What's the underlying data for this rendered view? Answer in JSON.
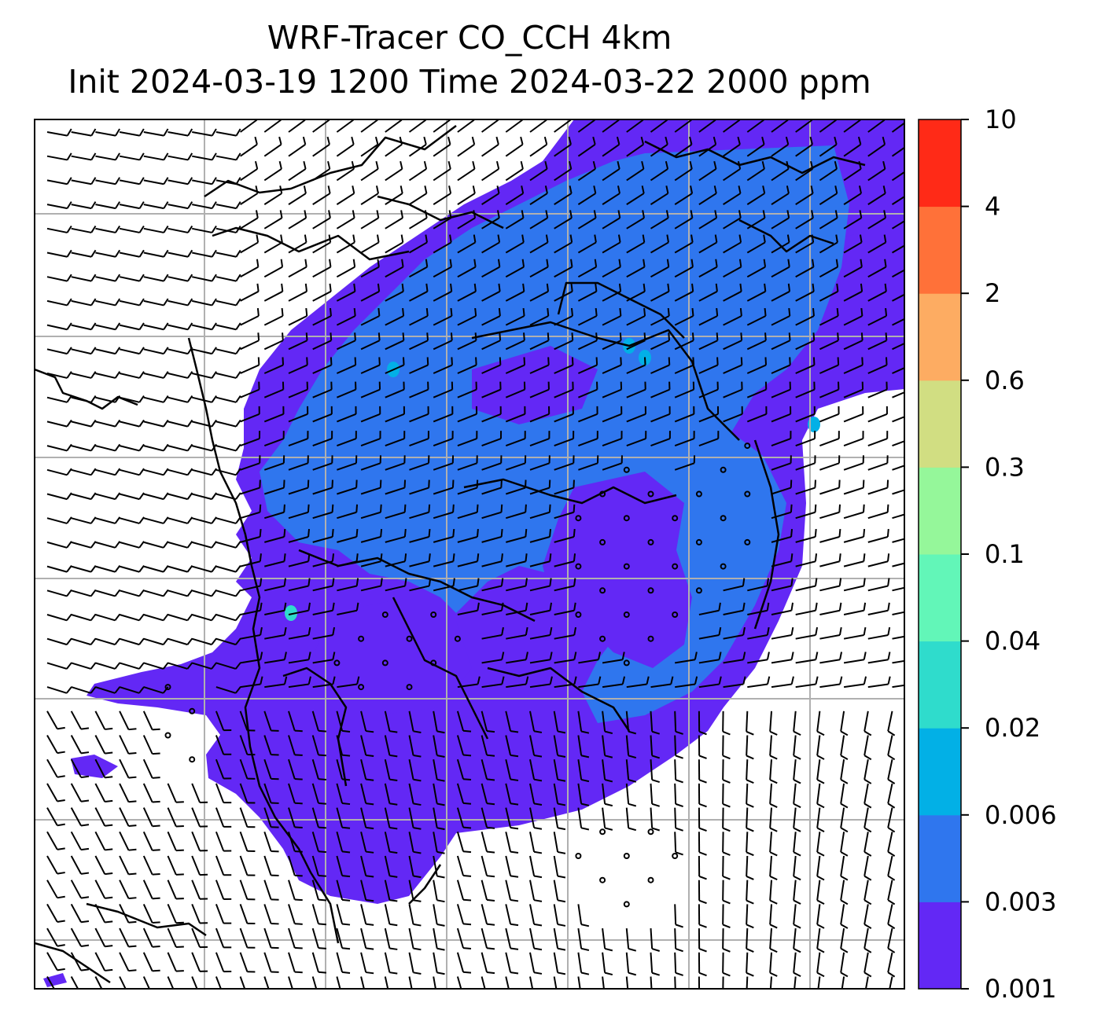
{
  "chart_data": {
    "type": "heatmap",
    "title": "WRF-Tracer CO_CCH 4km",
    "subtitle": "Init 2024-03-19 1200 Time 2024-03-22 2000 ppm",
    "xlabel": "",
    "ylabel": "",
    "grid": true,
    "overlays": [
      "coastlines and borders",
      "wind barbs"
    ],
    "colorbar": {
      "placement": "right",
      "levels": [
        0.001,
        0.003,
        0.006,
        0.02,
        0.04,
        0.1,
        0.3,
        0.6,
        2,
        4,
        10
      ],
      "tick_labels": [
        "0.001",
        "0.003",
        "0.006",
        "0.02",
        "0.04",
        "0.1",
        "0.3",
        "0.6",
        "2",
        "4",
        "10"
      ],
      "colors": [
        "#6328f5",
        "#2f76ee",
        "#02b0e6",
        "#2fdccc",
        "#62f6b8",
        "#95f79a",
        "#d1de82",
        "#fdac62",
        "#ff7139",
        "#ff2a17"
      ]
    },
    "regions": [
      {
        "name": "outer plume",
        "level": "0.001-0.003"
      },
      {
        "name": "inner plume",
        "level": "0.003-0.006"
      },
      {
        "name": "hotspots",
        "level": "0.006-0.04"
      }
    ]
  }
}
